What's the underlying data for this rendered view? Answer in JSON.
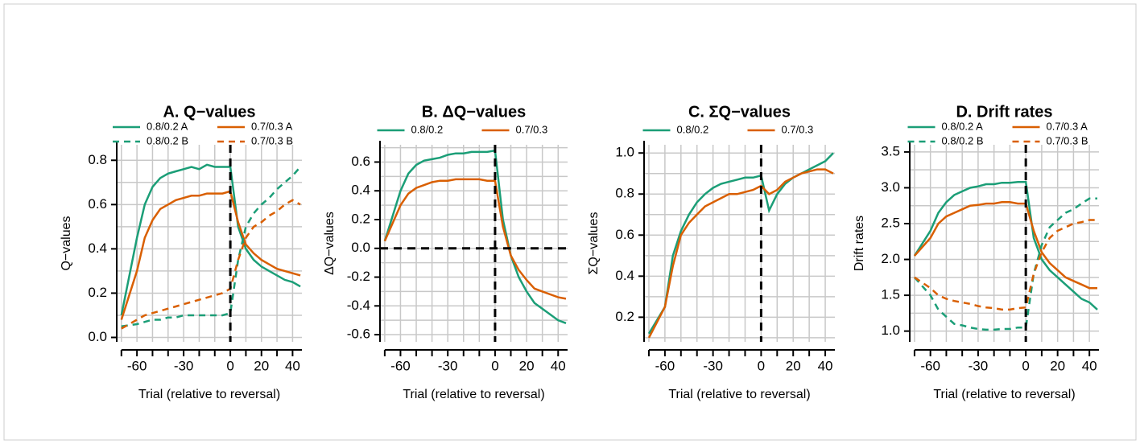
{
  "chart_data": [
    {
      "type": "line",
      "title": "A. Q−values",
      "xlabel": "Trial (relative to reversal)",
      "ylabel": "Q−values",
      "x": [
        -70,
        -60,
        -55,
        -50,
        -45,
        -40,
        -35,
        -30,
        -25,
        -20,
        -15,
        -10,
        -5,
        0,
        5,
        10,
        15,
        20,
        25,
        30,
        35,
        40,
        45
      ],
      "series": [
        {
          "name": "0.8/0.2 A",
          "color": "#1b9e77",
          "dashed": false,
          "values": [
            0.1,
            0.45,
            0.6,
            0.68,
            0.72,
            0.74,
            0.75,
            0.76,
            0.77,
            0.76,
            0.78,
            0.77,
            0.77,
            0.77,
            0.5,
            0.4,
            0.35,
            0.32,
            0.3,
            0.28,
            0.26,
            0.25,
            0.23
          ]
        },
        {
          "name": "0.7/0.3 A",
          "color": "#d95f02",
          "dashed": false,
          "values": [
            0.08,
            0.3,
            0.45,
            0.53,
            0.58,
            0.6,
            0.62,
            0.63,
            0.64,
            0.64,
            0.65,
            0.65,
            0.65,
            0.66,
            0.52,
            0.42,
            0.38,
            0.35,
            0.33,
            0.31,
            0.3,
            0.29,
            0.28
          ]
        },
        {
          "name": "0.8/0.2 B",
          "color": "#1b9e77",
          "dashed": true,
          "values": [
            0.05,
            0.06,
            0.07,
            0.08,
            0.08,
            0.09,
            0.09,
            0.1,
            0.1,
            0.1,
            0.1,
            0.1,
            0.1,
            0.11,
            0.35,
            0.5,
            0.56,
            0.6,
            0.63,
            0.67,
            0.7,
            0.73,
            0.77
          ]
        },
        {
          "name": "0.7/0.3 B",
          "color": "#d95f02",
          "dashed": true,
          "values": [
            0.04,
            0.08,
            0.1,
            0.11,
            0.12,
            0.13,
            0.14,
            0.15,
            0.16,
            0.17,
            0.18,
            0.19,
            0.2,
            0.22,
            0.35,
            0.45,
            0.5,
            0.52,
            0.55,
            0.57,
            0.6,
            0.62,
            0.6
          ]
        }
      ],
      "legend_columns": 2,
      "xlim": [
        -73,
        46
      ],
      "xticks": [
        -60,
        -30,
        0,
        20,
        40
      ],
      "xgrid": [
        -70,
        -60,
        -50,
        -40,
        -30,
        -20,
        -10,
        0,
        10,
        20,
        30,
        40
      ],
      "ylim": [
        -0.02,
        0.87
      ],
      "yticks": [
        {
          "value": 0,
          "label": "0.0"
        },
        0.2,
        0.4,
        0.6,
        0.8
      ],
      "ygrid": [
        0,
        0.1,
        0.2,
        0.3,
        0.4,
        0.5,
        0.6,
        0.7,
        0.8
      ],
      "vlines": [
        0
      ],
      "hlines": [],
      "grid": true
    },
    {
      "type": "line",
      "title": "B. ΔQ−values",
      "xlabel": "Trial (relative to reversal)",
      "ylabel": "ΔQ−values",
      "x": [
        -70,
        -60,
        -55,
        -50,
        -45,
        -40,
        -35,
        -30,
        -25,
        -20,
        -15,
        -10,
        -5,
        0,
        5,
        10,
        15,
        20,
        25,
        30,
        35,
        40,
        45
      ],
      "series": [
        {
          "name": "0.8/0.2",
          "color": "#1b9e77",
          "dashed": false,
          "values": [
            0.05,
            0.4,
            0.52,
            0.58,
            0.61,
            0.62,
            0.63,
            0.65,
            0.66,
            0.66,
            0.67,
            0.67,
            0.67,
            0.68,
            0.2,
            -0.05,
            -0.2,
            -0.3,
            -0.38,
            -0.42,
            -0.46,
            -0.5,
            -0.52
          ]
        },
        {
          "name": "0.7/0.3",
          "color": "#d95f02",
          "dashed": false,
          "values": [
            0.05,
            0.3,
            0.38,
            0.42,
            0.44,
            0.46,
            0.47,
            0.47,
            0.48,
            0.48,
            0.48,
            0.48,
            0.47,
            0.47,
            0.15,
            -0.05,
            -0.15,
            -0.22,
            -0.28,
            -0.3,
            -0.32,
            -0.34,
            -0.35
          ]
        }
      ],
      "legend_columns": 2,
      "xlim": [
        -73,
        46
      ],
      "xticks": [
        -60,
        -30,
        0,
        20,
        40
      ],
      "xgrid": [
        -70,
        -60,
        -50,
        -40,
        -30,
        -20,
        -10,
        0,
        10,
        20,
        30,
        40
      ],
      "ylim": [
        -0.65,
        0.72
      ],
      "yticks": [
        -0.6,
        -0.4,
        -0.2,
        {
          "value": 0,
          "label": "0.0"
        },
        0.2,
        0.4,
        0.6
      ],
      "ygrid": [
        -0.6,
        -0.5,
        -0.4,
        -0.3,
        -0.2,
        -0.1,
        0,
        0.1,
        0.2,
        0.3,
        0.4,
        0.5,
        0.6,
        0.7
      ],
      "vlines": [
        0
      ],
      "hlines": [
        0
      ],
      "grid": true
    },
    {
      "type": "line",
      "title": "C. ΣQ−values",
      "xlabel": "Trial (relative to reversal)",
      "ylabel": "ΣQ−values",
      "x": [
        -70,
        -60,
        -55,
        -50,
        -45,
        -40,
        -35,
        -30,
        -25,
        -20,
        -15,
        -10,
        -5,
        0,
        5,
        10,
        15,
        20,
        25,
        30,
        35,
        40,
        45
      ],
      "series": [
        {
          "name": "0.8/0.2",
          "color": "#1b9e77",
          "dashed": false,
          "values": [
            0.12,
            0.25,
            0.5,
            0.62,
            0.7,
            0.76,
            0.8,
            0.83,
            0.85,
            0.86,
            0.87,
            0.88,
            0.88,
            0.89,
            0.72,
            0.8,
            0.85,
            0.88,
            0.9,
            0.92,
            0.94,
            0.96,
            1.0
          ]
        },
        {
          "name": "0.7/0.3",
          "color": "#d95f02",
          "dashed": false,
          "values": [
            0.1,
            0.25,
            0.45,
            0.6,
            0.66,
            0.7,
            0.74,
            0.76,
            0.78,
            0.8,
            0.8,
            0.81,
            0.82,
            0.84,
            0.8,
            0.82,
            0.86,
            0.88,
            0.9,
            0.91,
            0.92,
            0.92,
            0.9
          ]
        }
      ],
      "legend_columns": 2,
      "xlim": [
        -73,
        46
      ],
      "xticks": [
        -60,
        -30,
        0,
        20,
        40
      ],
      "xgrid": [
        -70,
        -60,
        -50,
        -40,
        -30,
        -20,
        -10,
        0,
        10,
        20,
        30,
        40
      ],
      "ylim": [
        0.08,
        1.04
      ],
      "yticks": [
        0.2,
        0.4,
        0.6,
        0.8,
        {
          "value": 1,
          "label": "1.0"
        }
      ],
      "ygrid": [
        0.1,
        0.2,
        0.3,
        0.4,
        0.5,
        0.6,
        0.7,
        0.8,
        0.9,
        1.0
      ],
      "vlines": [
        0
      ],
      "hlines": [],
      "grid": true
    },
    {
      "type": "line",
      "title": "D. Drift rates",
      "xlabel": "Trial (relative to reversal)",
      "ylabel": "Drift rates",
      "x": [
        -70,
        -60,
        -55,
        -50,
        -45,
        -40,
        -35,
        -30,
        -25,
        -20,
        -15,
        -10,
        -5,
        0,
        5,
        10,
        15,
        20,
        25,
        30,
        35,
        40,
        45
      ],
      "series": [
        {
          "name": "0.8/0.2 A",
          "color": "#1b9e77",
          "dashed": false,
          "values": [
            2.05,
            2.4,
            2.65,
            2.8,
            2.9,
            2.95,
            3.0,
            3.02,
            3.05,
            3.05,
            3.07,
            3.07,
            3.08,
            3.08,
            2.3,
            2.0,
            1.85,
            1.75,
            1.65,
            1.55,
            1.45,
            1.4,
            1.3
          ]
        },
        {
          "name": "0.7/0.3 A",
          "color": "#d95f02",
          "dashed": false,
          "values": [
            2.05,
            2.3,
            2.5,
            2.6,
            2.65,
            2.7,
            2.75,
            2.76,
            2.78,
            2.78,
            2.8,
            2.8,
            2.78,
            2.78,
            2.4,
            2.1,
            1.95,
            1.85,
            1.75,
            1.7,
            1.65,
            1.6,
            1.6
          ]
        },
        {
          "name": "0.8/0.2 B",
          "color": "#1b9e77",
          "dashed": true,
          "values": [
            1.75,
            1.5,
            1.3,
            1.2,
            1.1,
            1.08,
            1.05,
            1.03,
            1.02,
            1.02,
            1.03,
            1.03,
            1.05,
            1.05,
            1.8,
            2.2,
            2.45,
            2.55,
            2.65,
            2.7,
            2.78,
            2.85,
            2.85
          ]
        },
        {
          "name": "0.7/0.3 B",
          "color": "#d95f02",
          "dashed": true,
          "values": [
            1.75,
            1.6,
            1.5,
            1.45,
            1.42,
            1.4,
            1.38,
            1.35,
            1.33,
            1.32,
            1.3,
            1.3,
            1.32,
            1.33,
            1.8,
            2.1,
            2.3,
            2.4,
            2.45,
            2.5,
            2.52,
            2.55,
            2.55
          ]
        }
      ],
      "legend_columns": 2,
      "xlim": [
        -73,
        46
      ],
      "xticks": [
        -60,
        -30,
        0,
        20,
        40
      ],
      "xgrid": [
        -70,
        -60,
        -50,
        -40,
        -30,
        -20,
        -10,
        0,
        10,
        20,
        30,
        40
      ],
      "ylim": [
        0.85,
        3.6
      ],
      "yticks": [
        {
          "value": 1,
          "label": "1.0"
        },
        1.5,
        {
          "value": 2,
          "label": "2.0"
        },
        2.5,
        {
          "value": 3,
          "label": "3.0"
        },
        3.5
      ],
      "ygrid": [
        1,
        1.25,
        1.5,
        1.75,
        2,
        2.25,
        2.5,
        2.75,
        3,
        3.25,
        3.5
      ],
      "vlines": [
        0
      ],
      "hlines": [],
      "grid": true
    }
  ]
}
